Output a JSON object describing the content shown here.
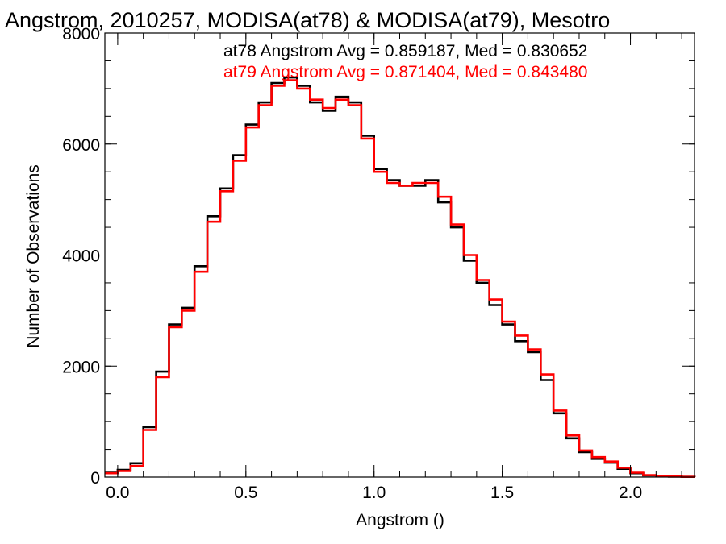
{
  "chart_data": {
    "type": "line",
    "step": true,
    "title": "Angstrom, 2010257, MODISA(at78) & MODISA(at79), Mesotro",
    "xlabel": "Angstrom ()",
    "ylabel": "Number of Observations",
    "xlim": [
      -0.05,
      2.25
    ],
    "ylim": [
      0,
      8000
    ],
    "x_ticks": [
      0.0,
      0.5,
      1.0,
      1.5,
      2.0
    ],
    "x_tick_labels": [
      "0.0",
      "0.5",
      "1.0",
      "1.5",
      "2.0"
    ],
    "y_ticks": [
      0,
      2000,
      4000,
      6000,
      8000
    ],
    "y_tick_labels": [
      "0",
      "2000",
      "4000",
      "6000",
      "8000"
    ],
    "x_minor_step": 0.1,
    "y_minor_step": 500,
    "grid": false,
    "annotations": [
      {
        "text": "at78 Angstrom Avg = 0.859187, Med = 0.830652",
        "color": "#000000"
      },
      {
        "text": "at79 Angstrom Avg = 0.871404, Med = 0.843480",
        "color": "#ff0000"
      }
    ],
    "x": [
      -0.05,
      0.0,
      0.05,
      0.1,
      0.15,
      0.2,
      0.25,
      0.3,
      0.35,
      0.4,
      0.45,
      0.5,
      0.55,
      0.6,
      0.65,
      0.7,
      0.75,
      0.8,
      0.85,
      0.9,
      0.95,
      1.0,
      1.05,
      1.1,
      1.15,
      1.2,
      1.25,
      1.3,
      1.35,
      1.4,
      1.45,
      1.5,
      1.55,
      1.6,
      1.65,
      1.7,
      1.75,
      1.8,
      1.85,
      1.9,
      1.95,
      2.0,
      2.05,
      2.1,
      2.15,
      2.2,
      2.25
    ],
    "series": [
      {
        "color": "#000000",
        "values": [
          80,
          130,
          250,
          900,
          1900,
          2750,
          3050,
          3800,
          4700,
          5200,
          5800,
          6350,
          6750,
          7100,
          7200,
          7050,
          6750,
          6600,
          6850,
          6750,
          6150,
          5550,
          5350,
          5250,
          5250,
          5350,
          4950,
          4500,
          3900,
          3500,
          3100,
          2750,
          2450,
          2250,
          1750,
          1150,
          700,
          450,
          330,
          260,
          150,
          70,
          30,
          20,
          10,
          5,
          0
        ]
      },
      {
        "color": "#ff0000",
        "values": [
          70,
          110,
          200,
          850,
          1800,
          2700,
          3000,
          3700,
          4600,
          5150,
          5700,
          6300,
          6700,
          7050,
          7150,
          7000,
          6800,
          6650,
          6800,
          6700,
          6100,
          5500,
          5300,
          5250,
          5300,
          5300,
          5050,
          4550,
          4000,
          3550,
          3200,
          2800,
          2550,
          2300,
          1850,
          1200,
          750,
          480,
          360,
          280,
          170,
          80,
          35,
          20,
          10,
          5,
          0
        ]
      }
    ]
  }
}
